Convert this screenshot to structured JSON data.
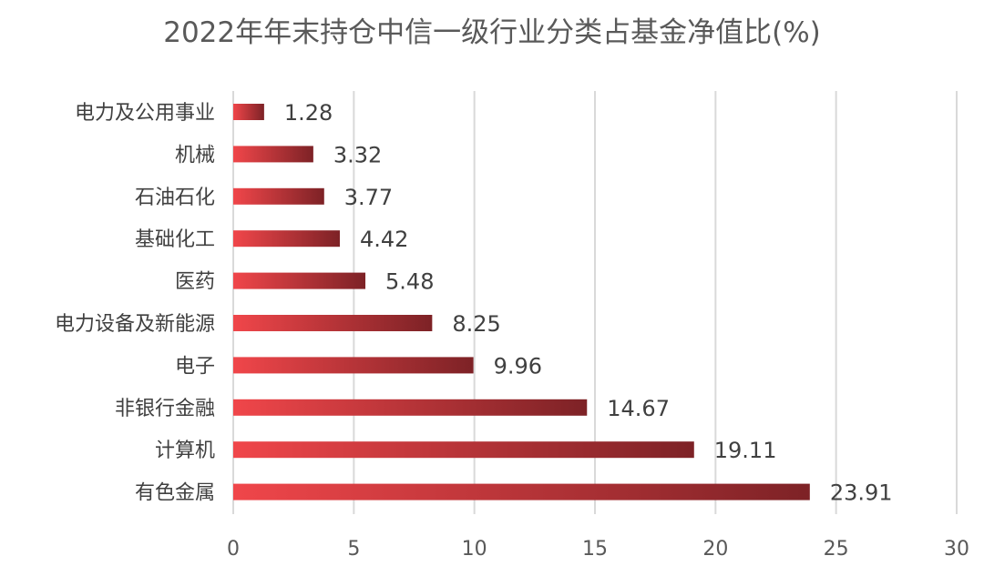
{
  "chart_data": {
    "type": "bar",
    "orientation": "horizontal",
    "title": "2022年年末持仓中信一级行业分类占基金净值比(%)",
    "categories": [
      "电力及公用事业",
      "机械",
      "石油石化",
      "基础化工",
      "医药",
      "电力设备及新能源",
      "电子",
      "非银行金融",
      "计算机",
      "有色金属"
    ],
    "values": [
      1.28,
      3.32,
      3.77,
      4.42,
      5.48,
      8.25,
      9.96,
      14.67,
      19.11,
      23.91
    ],
    "value_labels": [
      "1.28",
      "3.32",
      "3.77",
      "4.42",
      "5.48",
      "8.25",
      "9.96",
      "14.67",
      "19.11",
      "23.91"
    ],
    "xlim": [
      0,
      30
    ],
    "xticks": [
      0,
      5,
      10,
      15,
      20,
      25,
      30
    ],
    "grid": true,
    "legend": "none",
    "bar_gradient": [
      "#f0464a",
      "#7d2226"
    ]
  }
}
